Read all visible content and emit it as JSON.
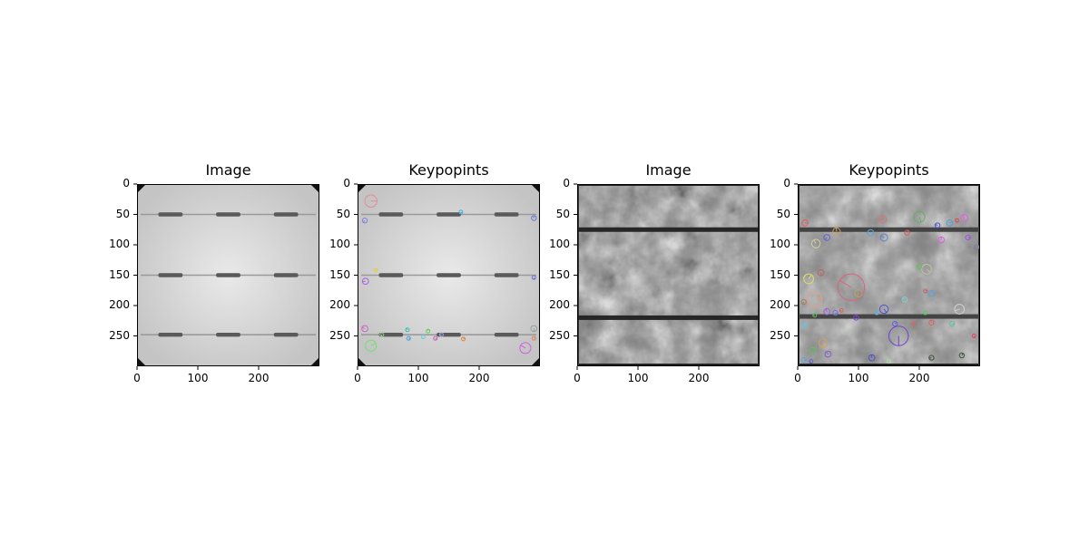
{
  "panels": [
    {
      "title": "Image",
      "kind": "cell-mono",
      "keypoints": false
    },
    {
      "title": "Keypopints",
      "kind": "cell-mono",
      "keypoints": true
    },
    {
      "title": "Image",
      "kind": "cell-poly",
      "keypoints": false
    },
    {
      "title": "Keypopints",
      "kind": "cell-poly",
      "keypoints": true
    }
  ],
  "axis": {
    "x_ticks": [
      "0",
      "100",
      "200"
    ],
    "y_ticks": [
      "0",
      "50",
      "100",
      "150",
      "200",
      "250"
    ],
    "x_values": [
      0,
      100,
      200
    ],
    "y_values": [
      0,
      50,
      100,
      150,
      200,
      250
    ],
    "xlim": [
      0,
      300
    ],
    "ylim": [
      300,
      0
    ]
  },
  "keypoints_panel2": [
    [
      22,
      28,
      10,
      "#e8889a"
    ],
    [
      12,
      60,
      4,
      "#7d82e0"
    ],
    [
      290,
      56,
      4,
      "#6a7ad8"
    ],
    [
      170,
      46,
      3,
      "#3fb0e0"
    ],
    [
      13,
      160,
      5,
      "#a060e0"
    ],
    [
      30,
      142,
      3,
      "#d8d040"
    ],
    [
      290,
      154,
      3,
      "#7070d0"
    ],
    [
      12,
      238,
      5,
      "#d060d0"
    ],
    [
      22,
      266,
      9,
      "#70e070"
    ],
    [
      40,
      248,
      3,
      "#8ad080"
    ],
    [
      82,
      240,
      3,
      "#40c0b0"
    ],
    [
      84,
      254,
      3,
      "#40a0e0"
    ],
    [
      108,
      252,
      3,
      "#70d0e0"
    ],
    [
      116,
      242,
      3,
      "#60d060"
    ],
    [
      128,
      254,
      3,
      "#c060c0"
    ],
    [
      138,
      248,
      3,
      "#a0a0e0"
    ],
    [
      174,
      255,
      3,
      "#e08040"
    ],
    [
      290,
      238,
      5,
      "#90a0a0"
    ],
    [
      276,
      270,
      9,
      "#d060e0"
    ],
    [
      290,
      254,
      3,
      "#e08060"
    ]
  ],
  "keypoints_panel4": [
    [
      12,
      64,
      5,
      "#e06060"
    ],
    [
      48,
      88,
      5,
      "#6060d0"
    ],
    [
      64,
      78,
      6,
      "#d0a060"
    ],
    [
      120,
      80,
      5,
      "#60a0d0"
    ],
    [
      140,
      58,
      6,
      "#e07070"
    ],
    [
      180,
      80,
      4,
      "#d06060"
    ],
    [
      200,
      54,
      9,
      "#60b060"
    ],
    [
      230,
      68,
      4,
      "#5050d0"
    ],
    [
      250,
      64,
      5,
      "#50a0d0"
    ],
    [
      262,
      60,
      3,
      "#d05050"
    ],
    [
      274,
      56,
      6,
      "#e060e0"
    ],
    [
      280,
      88,
      4,
      "#a050e0"
    ],
    [
      294,
      104,
      4,
      "#8080a0"
    ],
    [
      236,
      92,
      5,
      "#e060e0"
    ],
    [
      212,
      140,
      8,
      "#c0c0a0"
    ],
    [
      200,
      136,
      4,
      "#60c060"
    ],
    [
      18,
      156,
      8,
      "#e0e060"
    ],
    [
      38,
      146,
      5,
      "#c06060"
    ],
    [
      88,
      170,
      22,
      "#e06080"
    ],
    [
      28,
      190,
      12,
      "#e0a080"
    ],
    [
      10,
      194,
      4,
      "#a08060"
    ],
    [
      48,
      210,
      5,
      "#a060e0"
    ],
    [
      62,
      212,
      4,
      "#7070e0"
    ],
    [
      72,
      208,
      3,
      "#d06060"
    ],
    [
      96,
      220,
      4,
      "#8040d0"
    ],
    [
      142,
      206,
      7,
      "#5050d0"
    ],
    [
      130,
      212,
      3,
      "#60b0e0"
    ],
    [
      160,
      230,
      4,
      "#6060e0"
    ],
    [
      166,
      250,
      16,
      "#7040d0"
    ],
    [
      176,
      190,
      4,
      "#80d0d0"
    ],
    [
      190,
      230,
      3,
      "#e06060"
    ],
    [
      210,
      212,
      3,
      "#60c060"
    ],
    [
      220,
      228,
      4,
      "#e06060"
    ],
    [
      254,
      230,
      4,
      "#60c0a0"
    ],
    [
      266,
      206,
      8,
      "#d0d0d0"
    ],
    [
      220,
      180,
      5,
      "#60a0e0"
    ],
    [
      12,
      232,
      4,
      "#60c0e0"
    ],
    [
      28,
      216,
      3,
      "#60c060"
    ],
    [
      24,
      274,
      5,
      "#60c060"
    ],
    [
      42,
      262,
      7,
      "#d0a060"
    ],
    [
      50,
      280,
      5,
      "#8060d0"
    ],
    [
      10,
      290,
      4,
      "#60a0d0"
    ],
    [
      22,
      292,
      3,
      "#6060d0"
    ],
    [
      122,
      286,
      5,
      "#5050d0"
    ],
    [
      150,
      292,
      3,
      "#a0e0a0"
    ],
    [
      220,
      286,
      4,
      "#405040"
    ],
    [
      270,
      282,
      4,
      "#405040"
    ],
    [
      290,
      250,
      3,
      "#e04060"
    ],
    [
      142,
      88,
      6,
      "#6080d0"
    ],
    [
      210,
      176,
      3,
      "#d06060"
    ],
    [
      100,
      180,
      6,
      "#c0a060"
    ],
    [
      30,
      98,
      7,
      "#d0d0a0"
    ]
  ]
}
